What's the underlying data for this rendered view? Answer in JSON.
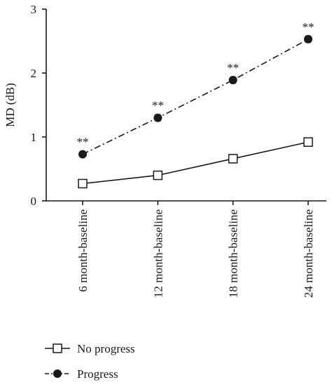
{
  "chart_data": {
    "type": "line",
    "categories": [
      "6 month-baseline",
      "12 month-baseline",
      "18 month-baseline",
      "24 month-baseline"
    ],
    "ylabel": "MD (dB)",
    "xlabel": "",
    "ylim": [
      0,
      3
    ],
    "yticks": [
      "0",
      "1",
      "2",
      "3"
    ],
    "grid": false,
    "legend_position": "bottom-left",
    "series": [
      {
        "name": "No progress",
        "values": [
          0.27,
          0.4,
          0.66,
          0.92
        ],
        "marker": "open-square",
        "line_style": "solid",
        "color": "#1a1a1a"
      },
      {
        "name": "Progress",
        "values": [
          0.73,
          1.3,
          1.89,
          2.53
        ],
        "errors": [
          0.04,
          0.05,
          0.05,
          0.05
        ],
        "marker": "filled-circle",
        "line_style": "dash-dot",
        "color": "#1a1a1a"
      }
    ],
    "annotations": [
      "**",
      "**",
      "**",
      "**"
    ]
  }
}
